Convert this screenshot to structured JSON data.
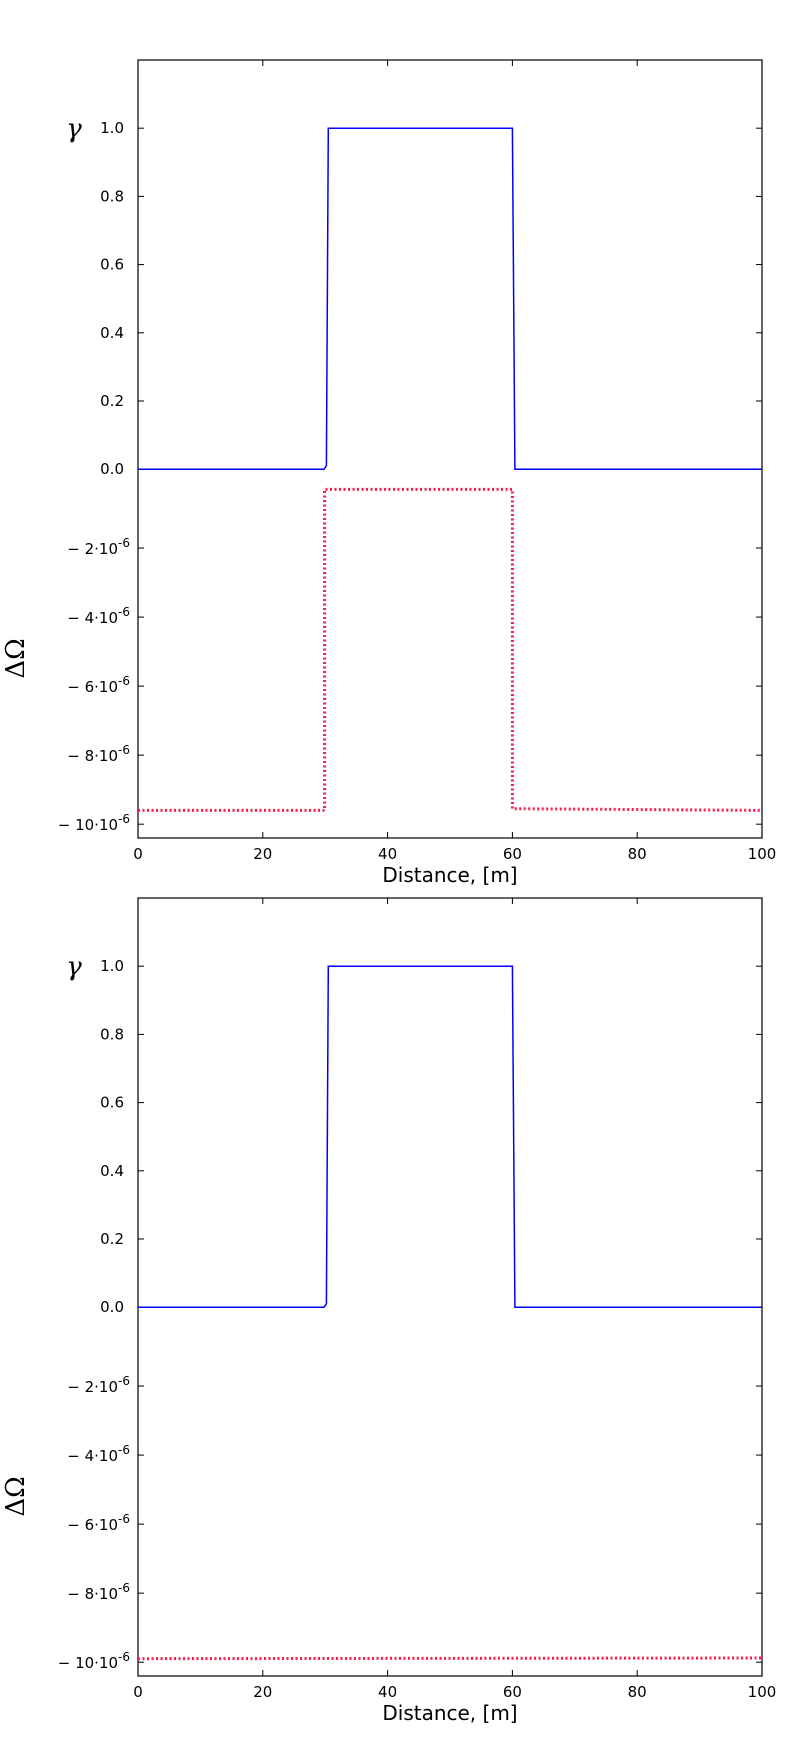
{
  "chart_data": [
    {
      "type": "line",
      "xlabel": "Distance, [m]",
      "upper_axis_label": "γ",
      "lower_axis_label": "ΔΩ",
      "xlim": [
        0,
        100
      ],
      "x_ticks": [
        "0",
        "20",
        "40",
        "60",
        "80",
        "100"
      ],
      "upper_ylim": [
        -0.02,
        1.2
      ],
      "upper_y_ticks": [
        "0.0",
        "0.2",
        "0.4",
        "0.6",
        "0.8",
        "1.0"
      ],
      "lower_ylim": [
        -1.04e-05,
        0
      ],
      "lower_y_ticks": [
        {
          "mantissa": "− 2·10",
          "exp": "-6"
        },
        {
          "mantissa": "− 4·10",
          "exp": "-6"
        },
        {
          "mantissa": "− 6·10",
          "exp": "-6"
        },
        {
          "mantissa": "− 8·10",
          "exp": "-6"
        },
        {
          "mantissa": "− 10·10",
          "exp": "-6"
        }
      ],
      "grid": false,
      "series": [
        {
          "panel": "upper",
          "style": "solid",
          "color": "#0000ff",
          "x": [
            0,
            29.8,
            30.2,
            30.5,
            59.7,
            60.0,
            60.4,
            100
          ],
          "y": [
            0.0,
            0.0,
            0.01,
            1.0,
            1.0,
            1.0,
            0.0,
            0.0
          ]
        },
        {
          "panel": "lower",
          "style": "dotted",
          "color": "#ff1a4d",
          "x": [
            0,
            29.9,
            29.9,
            60.0,
            60.0,
            100
          ],
          "y": [
            -9.6e-06,
            -9.6e-06,
            -3e-07,
            -3e-07,
            -9.55e-06,
            -9.6e-06
          ]
        }
      ]
    },
    {
      "type": "line",
      "xlabel": "Distance, [m]",
      "upper_axis_label": "γ",
      "lower_axis_label": "ΔΩ",
      "xlim": [
        0,
        100
      ],
      "x_ticks": [
        "0",
        "20",
        "40",
        "60",
        "80",
        "100"
      ],
      "upper_ylim": [
        -0.02,
        1.2
      ],
      "upper_y_ticks": [
        "0.0",
        "0.2",
        "0.4",
        "0.6",
        "0.8",
        "1.0"
      ],
      "lower_ylim": [
        -1.04e-05,
        0
      ],
      "lower_y_ticks": [
        {
          "mantissa": "− 2·10",
          "exp": "-6"
        },
        {
          "mantissa": "− 4·10",
          "exp": "-6"
        },
        {
          "mantissa": "− 6·10",
          "exp": "-6"
        },
        {
          "mantissa": "− 8·10",
          "exp": "-6"
        },
        {
          "mantissa": "− 10·10",
          "exp": "-6"
        }
      ],
      "grid": false,
      "series": [
        {
          "panel": "upper",
          "style": "solid",
          "color": "#0000ff",
          "x": [
            0,
            29.8,
            30.2,
            30.5,
            59.7,
            60.0,
            60.4,
            100
          ],
          "y": [
            0.0,
            0.0,
            0.01,
            1.0,
            1.0,
            1.0,
            0.0,
            0.0
          ]
        },
        {
          "panel": "lower",
          "style": "dotted",
          "color": "#ff1a4d",
          "x": [
            0,
            100
          ],
          "y": [
            -9.9e-06,
            -9.88e-06
          ]
        }
      ]
    }
  ]
}
